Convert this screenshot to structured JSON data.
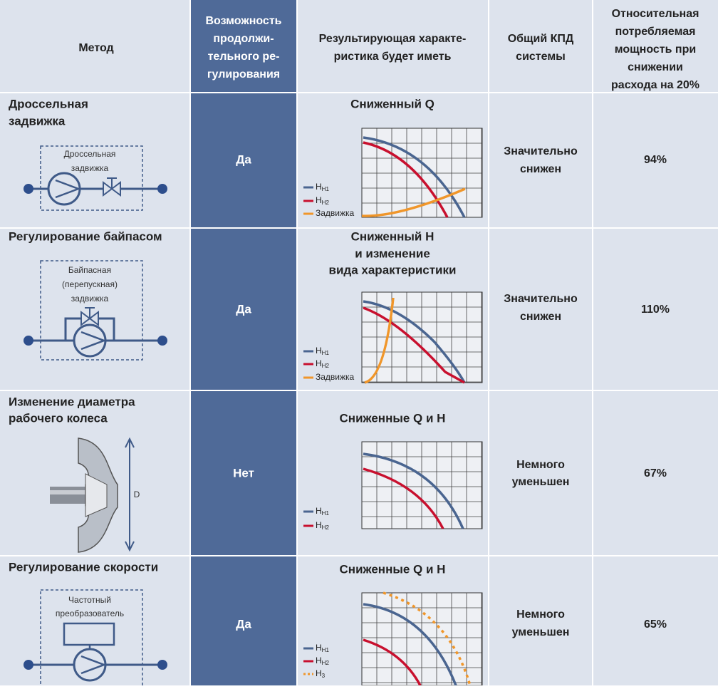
{
  "header": {
    "columns": [
      [
        "Метод"
      ],
      [
        "Возможность",
        "продолжи-",
        "тельного ре-",
        "гулирования"
      ],
      [
        "Результирующая характе-",
        "ристика будет иметь"
      ],
      [
        "Общий КПД",
        "системы"
      ],
      [
        "Относительная",
        "потребляемая",
        "мощность при",
        "снижении",
        "расхода на 20%"
      ]
    ]
  },
  "rows": [
    {
      "method": [
        "Дроссельная",
        "задвижка"
      ],
      "diagram_labels": [
        "Дроссельная",
        "задвижка"
      ],
      "continuous": "Да",
      "chart_title": [
        "Сниженный Q"
      ],
      "legend": [
        {
          "text": "H",
          "sub": "Н1"
        },
        {
          "text": "H",
          "sub": "Н2"
        },
        {
          "text": "Задвижка"
        }
      ],
      "efficiency": [
        "Значительно",
        "снижен"
      ],
      "power": "94%"
    },
    {
      "method": [
        "Регулирование байпасом"
      ],
      "diagram_labels": [
        "Байпасная",
        "(перепускная)",
        "задвижка"
      ],
      "continuous": "Да",
      "chart_title": [
        "Сниженный H",
        "и изменение",
        "вида характеристики"
      ],
      "legend": [
        {
          "text": "H",
          "sub": "Н1"
        },
        {
          "text": "H",
          "sub": "Н2"
        },
        {
          "text": "Задвижка"
        }
      ],
      "efficiency": [
        "Значительно",
        "снижен"
      ],
      "power": "110%"
    },
    {
      "method": [
        "Изменение диаметра",
        "рабочего колеса"
      ],
      "diagram_labels": [
        "D"
      ],
      "continuous": "Нет",
      "chart_title": [
        "Сниженные Q и H"
      ],
      "legend": [
        {
          "text": "H",
          "sub": "Н1"
        },
        {
          "text": "H",
          "sub": "Н2"
        }
      ],
      "efficiency": [
        "Немного",
        "уменьшен"
      ],
      "power": "67%"
    },
    {
      "method": [
        "Регулирование скорости"
      ],
      "diagram_labels": [
        "Частотный",
        "преобразователь"
      ],
      "continuous": "Да",
      "chart_title": [
        "Сниженные Q и H"
      ],
      "legend": [
        {
          "text": "H",
          "sub": "Н1"
        },
        {
          "text": "H",
          "sub": "Н2"
        },
        {
          "text": "H",
          "sub": "3"
        }
      ],
      "efficiency": [
        "Немного",
        "уменьшен"
      ],
      "power": "65%"
    }
  ]
}
